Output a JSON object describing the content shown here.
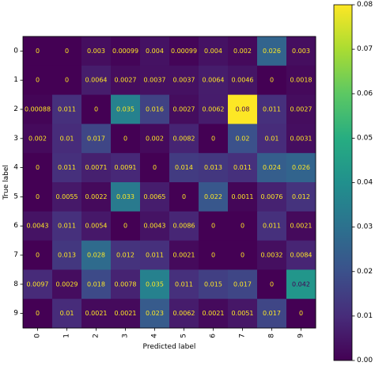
{
  "chart_data": {
    "type": "heatmap",
    "title": "",
    "xlabel": "Predicted label",
    "ylabel": "True label",
    "x_categories": [
      "0",
      "1",
      "2",
      "3",
      "4",
      "5",
      "6",
      "7",
      "8",
      "9"
    ],
    "y_categories": [
      "0",
      "1",
      "2",
      "3",
      "4",
      "5",
      "6",
      "7",
      "8",
      "9"
    ],
    "values": [
      [
        0,
        0,
        0.003,
        0.00099,
        0.004,
        0.00099,
        0.004,
        0.002,
        0.026,
        0.003
      ],
      [
        0,
        0,
        0.0064,
        0.0027,
        0.0037,
        0.0037,
        0.0064,
        0.0046,
        0,
        0.0018
      ],
      [
        0.00088,
        0.011,
        0,
        0.035,
        0.016,
        0.0027,
        0.0062,
        0.08,
        0.011,
        0.0027
      ],
      [
        0.002,
        0.01,
        0.017,
        0,
        0.002,
        0.0082,
        0,
        0.02,
        0.01,
        0.0031
      ],
      [
        0,
        0.011,
        0.0071,
        0.0091,
        0,
        0.014,
        0.013,
        0.011,
        0.024,
        0.026
      ],
      [
        0,
        0.0055,
        0.0022,
        0.033,
        0.0065,
        0,
        0.022,
        0.0011,
        0.0076,
        0.012
      ],
      [
        0.0043,
        0.011,
        0.0054,
        0,
        0.0043,
        0.0086,
        0,
        0,
        0.011,
        0.0021
      ],
      [
        0,
        0.013,
        0.028,
        0.012,
        0.011,
        0.0021,
        0,
        0,
        0.0032,
        0.0084
      ],
      [
        0.0097,
        0.0029,
        0.018,
        0.0078,
        0.035,
        0.011,
        0.015,
        0.017,
        0,
        0.042
      ],
      [
        0,
        0.01,
        0.0021,
        0.0021,
        0.023,
        0.0062,
        0.0021,
        0.0051,
        0.017,
        0
      ]
    ],
    "labels": [
      [
        "0",
        "0",
        "0.003",
        "0.00099",
        "0.004",
        "0.00099",
        "0.004",
        "0.002",
        "0.026",
        "0.003"
      ],
      [
        "0",
        "0",
        "0.0064",
        "0.0027",
        "0.0037",
        "0.0037",
        "0.0064",
        "0.0046",
        "0",
        "0.0018"
      ],
      [
        "0.00088",
        "0.011",
        "0",
        "0.035",
        "0.016",
        "0.0027",
        "0.0062",
        "0.08",
        "0.011",
        "0.0027"
      ],
      [
        "0.002",
        "0.01",
        "0.017",
        "0",
        "0.002",
        "0.0082",
        "0",
        "0.02",
        "0.01",
        "0.0031"
      ],
      [
        "0",
        "0.011",
        "0.0071",
        "0.0091",
        "0",
        "0.014",
        "0.013",
        "0.011",
        "0.024",
        "0.026"
      ],
      [
        "0",
        "0.0055",
        "0.0022",
        "0.033",
        "0.0065",
        "0",
        "0.022",
        "0.0011",
        "0.0076",
        "0.012"
      ],
      [
        "0.0043",
        "0.011",
        "0.0054",
        "0",
        "0.0043",
        "0.0086",
        "0",
        "0",
        "0.011",
        "0.0021"
      ],
      [
        "0",
        "0.013",
        "0.028",
        "0.012",
        "0.011",
        "0.0021",
        "0",
        "0",
        "0.0032",
        "0.0084"
      ],
      [
        "0.0097",
        "0.0029",
        "0.018",
        "0.0078",
        "0.035",
        "0.011",
        "0.015",
        "0.017",
        "0",
        "0.042"
      ],
      [
        "0",
        "0.01",
        "0.0021",
        "0.0021",
        "0.023",
        "0.0062",
        "0.0021",
        "0.0051",
        "0.017",
        "0"
      ]
    ],
    "colormap": "viridis",
    "vmin": 0,
    "vmax": 0.08,
    "colorbar_ticks": [
      "0.00",
      "0.01",
      "0.02",
      "0.03",
      "0.04",
      "0.05",
      "0.06",
      "0.07",
      "0.08"
    ],
    "colorbar_tick_values": [
      0,
      0.01,
      0.02,
      0.03,
      0.04,
      0.05,
      0.06,
      0.07,
      0.08
    ],
    "grid": false,
    "colors": {
      "low_text": "#fde725",
      "high_text": "#440154"
    }
  }
}
